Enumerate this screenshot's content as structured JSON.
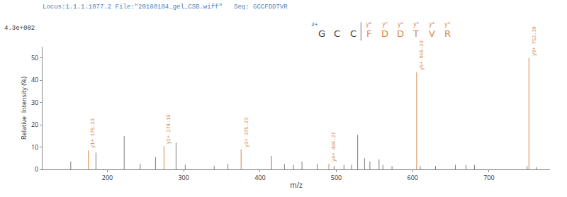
{
  "chart_data": {
    "type": "stem",
    "title": "Locus:1.1.1.1077.2 File:\"20180104_gel_CSB.wiff\"   Seq: GCCFDDTVR",
    "title_color": "#4a7fc0",
    "annotations": [
      "4.3e+002"
    ],
    "xlabel": "m/z",
    "ylabel": "Relative  Intensity (%)",
    "xlim": [
      115,
      780
    ],
    "xticks": [
      200,
      300,
      400,
      500,
      600,
      700
    ],
    "ylim": [
      0,
      55
    ],
    "yticks": [
      0,
      10,
      20,
      30,
      40,
      50
    ],
    "grid": false,
    "axis_color": "#888888",
    "series": [
      {
        "color": "#7a7a7a",
        "x": [
          152,
          185,
          222,
          243,
          263,
          290,
          302,
          340,
          358,
          415,
          432,
          444,
          455,
          475,
          497,
          510,
          520,
          528,
          537,
          544,
          556,
          561,
          573,
          610,
          630,
          656,
          670,
          681,
          750,
          762
        ],
        "values": [
          3.5,
          7.5,
          15.0,
          2.5,
          5.5,
          12.0,
          2.0,
          1.5,
          2.5,
          6.0,
          2.5,
          2.0,
          3.5,
          2.5,
          1.5,
          2.0,
          2.0,
          15.5,
          5.0,
          3.5,
          4.5,
          2.0,
          1.5,
          1.5,
          1.5,
          2.0,
          2.0,
          2.0,
          1.5,
          1.0
        ]
      },
      {
        "color": "#d4884a",
        "x": [
          175.13,
          274.19,
          375.23,
          490.27,
          605.29,
          752.36
        ],
        "values": [
          8.5,
          10.5,
          9.0,
          2.5,
          43.5,
          50.0
        ],
        "labels": [
          "y1+ 175.13",
          "y2+ 274.19",
          "y3+ 375.23",
          "y4+ 490.27",
          "y5+ 605.29",
          "y8+ 752.36"
        ]
      }
    ],
    "sequence": {
      "letters": [
        "G",
        "C",
        "C",
        "F",
        "D",
        "D",
        "T",
        "V",
        "R"
      ],
      "colors": [
        "#404040",
        "#404040",
        "#404040",
        "#d4884a",
        "#d4884a",
        "#d4884a",
        "#d4884a",
        "#d4884a",
        "#d4884a"
      ],
      "ion_labels": [
        null,
        null,
        null,
        "y⁸",
        "y⁷",
        "y⁶",
        "y⁵",
        "y⁴",
        "y³"
      ],
      "charge_label": {
        "text": "2+",
        "color": "#3a5ea0"
      },
      "separator_color": "#7a7a7a"
    }
  }
}
